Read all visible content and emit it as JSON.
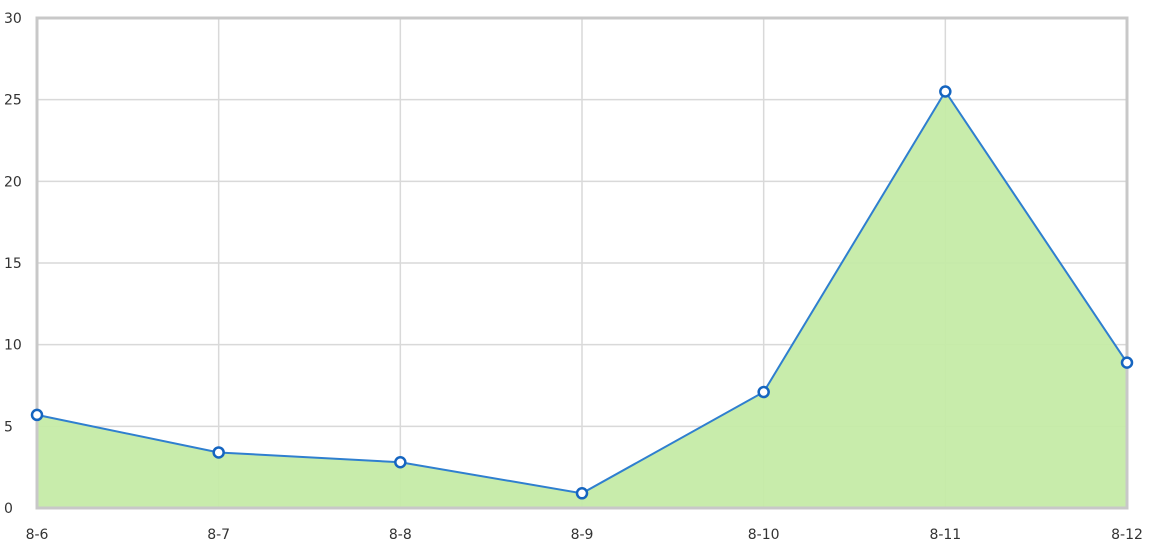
{
  "chart_data": {
    "type": "area",
    "title": "",
    "xlabel": "",
    "ylabel": "",
    "categories": [
      "8-6",
      "8-7",
      "8-8",
      "8-9",
      "8-10",
      "8-11",
      "8-12"
    ],
    "series": [
      {
        "values": [
          5.7,
          3.4,
          2.8,
          0.9,
          7.1,
          25.5,
          8.9
        ]
      }
    ],
    "ylim": [
      0,
      30
    ],
    "yticks": [
      0,
      5,
      10,
      15,
      20,
      25,
      30
    ],
    "grid": true,
    "legend": "none",
    "colors": {
      "line": "#2f7fcf",
      "fill": "#c5eba6",
      "marker_stroke": "#1565c0",
      "marker_fill": "#ffffff",
      "grid": "#d9d9d9",
      "frame": "#c8c8c8"
    }
  }
}
